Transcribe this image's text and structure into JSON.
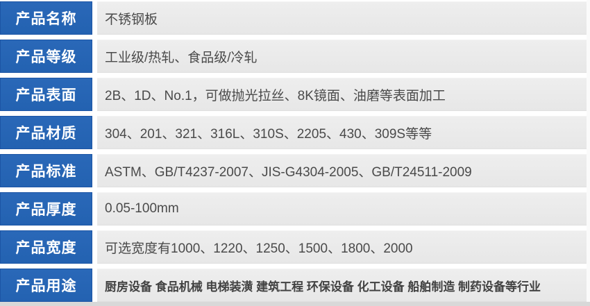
{
  "table": {
    "rows": [
      {
        "label": "产品名称",
        "value": "不锈钢板"
      },
      {
        "label": "产品等级",
        "value": "工业级/热轧、食品级/冷轧"
      },
      {
        "label": "产品表面",
        "value": "2B、1D、No.1，可做抛光拉丝、8K镜面、油磨等表面加工"
      },
      {
        "label": "产品材质",
        "value": "304、201、321、316L、310S、2205、430、309S等等"
      },
      {
        "label": "产品标准",
        "value": "ASTM、GB/T4237-2007、JIS-G4304-2005、GB/T24511-2009"
      },
      {
        "label": "产品厚度",
        "value": "0.05-100mm"
      },
      {
        "label": "产品宽度",
        "value": "可选宽度有1000、1220、1250、1500、1800、2000"
      },
      {
        "label": "产品用途",
        "value": "厨房设备 食品机械 电梯装潢 建筑工程 环保设备 化工设备 船舶制造 制药设备等行业",
        "emphasis": true
      }
    ],
    "colors": {
      "label_bg": "#2362b1",
      "label_bg_light": "#2a68b8",
      "label_border": "#1c55a5",
      "label_text": "#ffffff",
      "value_bg": "#e7e7e7",
      "value_text": "#4a4a4a",
      "bottom_strip": "#d8d8d8"
    }
  }
}
